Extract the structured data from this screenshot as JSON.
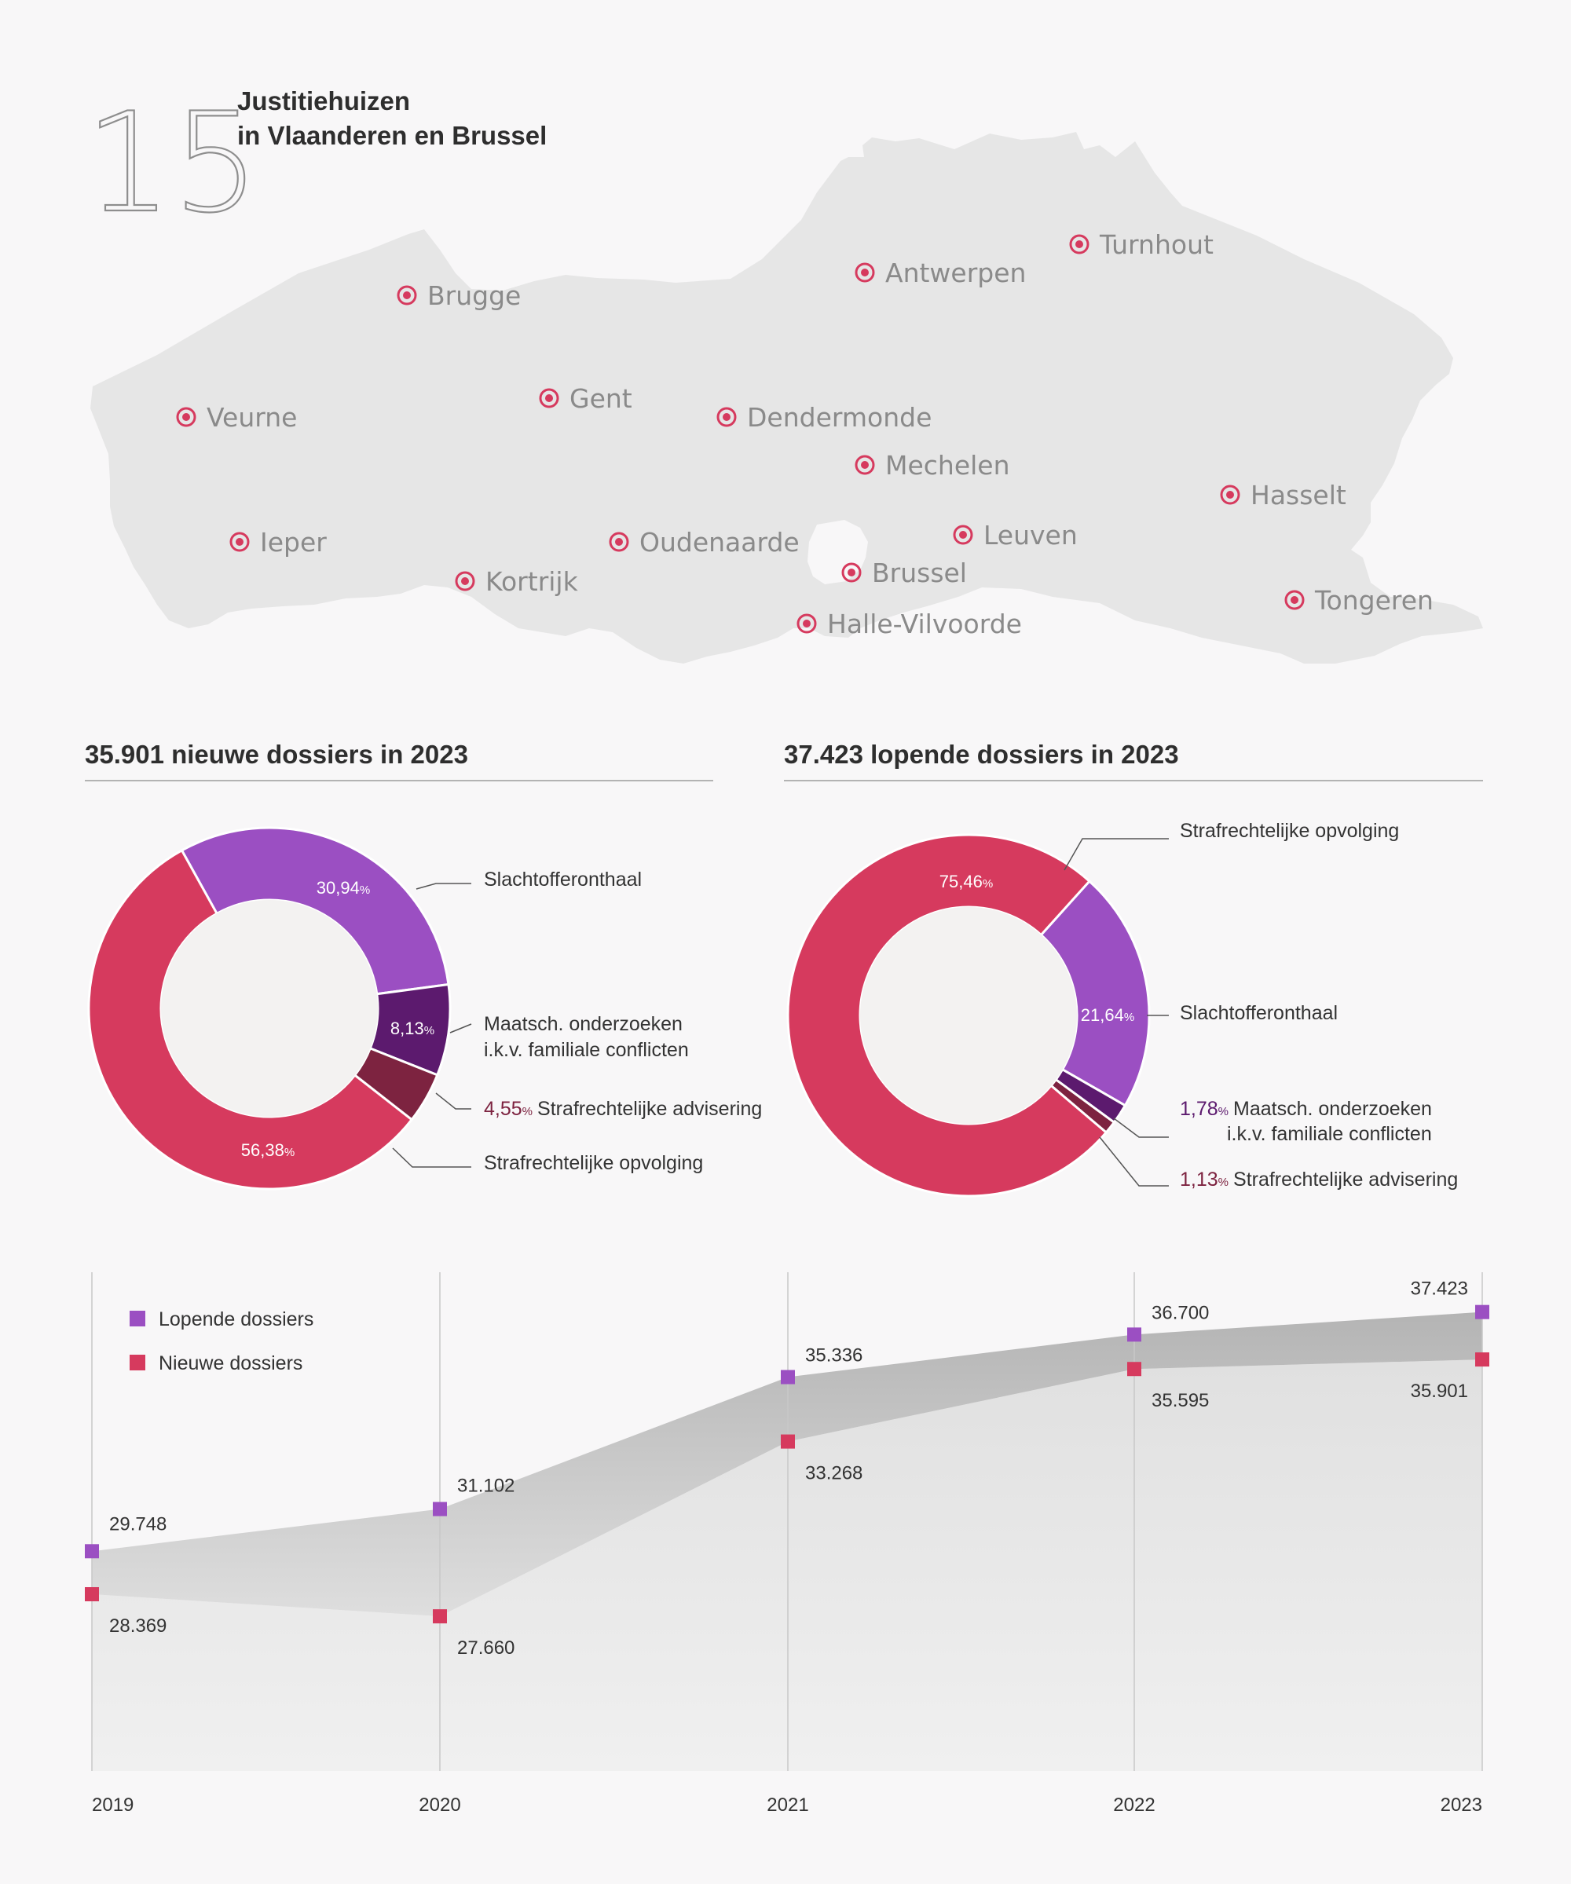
{
  "header": {
    "number": "15",
    "title_line1": "Justitiehuizen",
    "title_line2": "in Vlaanderen en Brussel"
  },
  "map": {
    "marker_color": "#d63a5e",
    "cities": [
      "Brugge",
      "Veurne",
      "Ieper",
      "Kortrijk",
      "Gent",
      "Oudenaarde",
      "Dendermonde",
      "Antwerpen",
      "Turnhout",
      "Mechelen",
      "Leuven",
      "Brussel",
      "Halle-Vilvoorde",
      "Hasselt",
      "Tongeren"
    ]
  },
  "chart_data": [
    {
      "type": "pie",
      "title": "35.901 nieuwe dossiers in 2023",
      "slices": [
        {
          "label": "Slachtofferonthaal",
          "label_line2": "",
          "value": 30.94,
          "value_text": "30,94",
          "color": "#9b4fc2"
        },
        {
          "label": "Maatsch. onderzoeken",
          "label_line2": "i.k.v. familiale conflicten",
          "value": 8.13,
          "value_text": "8,13",
          "color": "#5c1a6e"
        },
        {
          "label": "Strafrechtelijke advisering",
          "label_line2": "",
          "value": 4.55,
          "value_text": "4,55",
          "color": "#7d2340"
        },
        {
          "label": "Strafrechtelijke opvolging",
          "label_line2": "",
          "value": 56.38,
          "value_text": "56,38",
          "color": "#d63a5e"
        }
      ],
      "percent_sign": "%"
    },
    {
      "type": "pie",
      "title": "37.423 lopende dossiers in 2023",
      "slices": [
        {
          "label": "Slachtofferonthaal",
          "label_line2": "",
          "value": 21.64,
          "value_text": "21,64",
          "color": "#9b4fc2"
        },
        {
          "label": "Maatsch. onderzoeken",
          "label_line2": "i.k.v. familiale conflicten",
          "value": 1.78,
          "value_text": "1,78",
          "color": "#5c1a6e"
        },
        {
          "label": "Strafrechtelijke advisering",
          "label_line2": "",
          "value": 1.13,
          "value_text": "1,13",
          "color": "#7d2340"
        },
        {
          "label": "Strafrechtelijke opvolging",
          "label_line2": "",
          "value": 75.46,
          "value_text": "75,46",
          "color": "#d63a5e"
        }
      ],
      "percent_sign": "%"
    },
    {
      "type": "area",
      "x": [
        "2019",
        "2020",
        "2021",
        "2022",
        "2023"
      ],
      "series": [
        {
          "name": "Lopende dossiers",
          "values": [
            29748,
            31102,
            35336,
            36700,
            37423
          ],
          "labels": [
            "29.748",
            "31.102",
            "35.336",
            "36.700",
            "37.423"
          ],
          "color": "#9b4fc2"
        },
        {
          "name": "Nieuwe dossiers",
          "values": [
            28369,
            27660,
            33268,
            35595,
            35901
          ],
          "labels": [
            "28.369",
            "27.660",
            "33.268",
            "35.595",
            "35.901"
          ],
          "color": "#d63a5e"
        }
      ],
      "ylim": [
        22700,
        38700
      ],
      "grid": "vertical",
      "legend": "top-left"
    }
  ]
}
